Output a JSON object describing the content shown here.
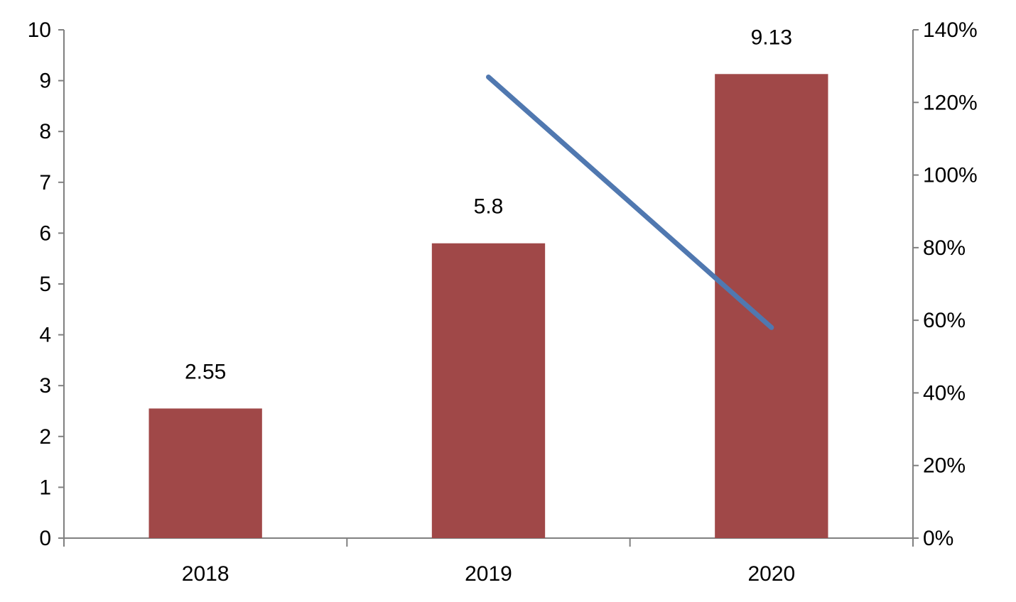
{
  "chart_data": {
    "type": "bar",
    "categories": [
      "2018",
      "2019",
      "2020"
    ],
    "series": [
      {
        "type": "bar",
        "axis": "left",
        "values": [
          2.55,
          5.8,
          9.13
        ],
        "data_labels": [
          "2.55",
          "5.8",
          "9.13"
        ],
        "color": "#a04848"
      },
      {
        "type": "line",
        "axis": "right",
        "values": [
          null,
          1.27,
          0.58
        ],
        "color": "#5078b0"
      }
    ],
    "y_left": {
      "min": 0,
      "max": 10,
      "step": 1,
      "tick_labels": [
        "0",
        "1",
        "2",
        "3",
        "4",
        "5",
        "6",
        "7",
        "8",
        "9",
        "10"
      ]
    },
    "y_right": {
      "min": 0,
      "max": 1.4,
      "step": 0.2,
      "tick_labels": [
        "0%",
        "20%",
        "40%",
        "60%",
        "80%",
        "100%",
        "120%",
        "140%"
      ]
    },
    "title": "",
    "xlabel": "",
    "ylabel": "",
    "grid": false,
    "legend": "none",
    "axis_color": "#808080"
  }
}
